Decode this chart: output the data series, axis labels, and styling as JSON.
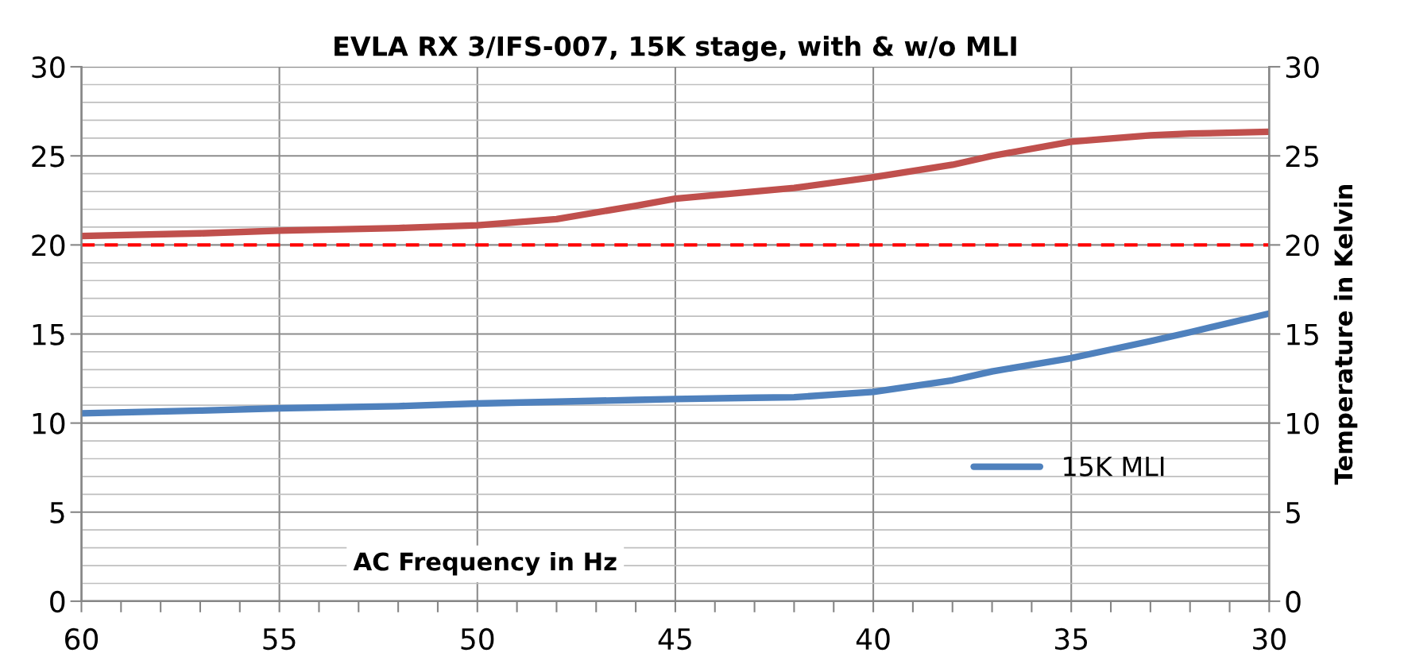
{
  "chart_data": {
    "type": "line",
    "title": "EVLA RX 3/IFS-007, 15K stage, with & w/o MLI",
    "xlabel": "AC Frequency in Hz",
    "y2label": "Temperature in Kelvin",
    "x": [
      60,
      57,
      55,
      52,
      50,
      48,
      46,
      45,
      43,
      42,
      40,
      38,
      37,
      35,
      33,
      32,
      30
    ],
    "series": [
      {
        "color": "#c0504d",
        "values": [
          20.5,
          20.65,
          20.8,
          20.95,
          21.1,
          21.45,
          22.2,
          22.6,
          23.0,
          23.2,
          23.8,
          24.5,
          25.0,
          25.8,
          26.15,
          26.25,
          26.35
        ]
      },
      {
        "name": "15K MLI",
        "color": "#4f81bd",
        "values": [
          10.55,
          10.7,
          10.83,
          10.95,
          11.1,
          11.2,
          11.3,
          11.35,
          11.42,
          11.45,
          11.75,
          12.4,
          12.9,
          13.65,
          14.6,
          15.1,
          16.15
        ]
      }
    ],
    "xlim": [
      60,
      30
    ],
    "xticks": [
      60,
      {
        "value": 59,
        "label": null
      },
      {
        "value": 58,
        "label": null
      },
      {
        "value": 57,
        "label": null
      },
      {
        "value": 56,
        "label": null
      },
      55,
      {
        "value": 54,
        "label": null
      },
      {
        "value": 53,
        "label": null
      },
      {
        "value": 52,
        "label": null
      },
      {
        "value": 51,
        "label": null
      },
      50,
      {
        "value": 49,
        "label": null
      },
      {
        "value": 48,
        "label": null
      },
      {
        "value": 47,
        "label": null
      },
      {
        "value": 46,
        "label": null
      },
      45,
      {
        "value": 44,
        "label": null
      },
      {
        "value": 43,
        "label": null
      },
      {
        "value": 42,
        "label": null
      },
      {
        "value": 41,
        "label": null
      },
      40,
      {
        "value": 39,
        "label": null
      },
      {
        "value": 38,
        "label": null
      },
      {
        "value": 37,
        "label": null
      },
      {
        "value": 36,
        "label": null
      },
      35,
      {
        "value": 34,
        "label": null
      },
      {
        "value": 33,
        "label": null
      },
      {
        "value": 32,
        "label": null
      },
      {
        "value": 31,
        "label": null
      },
      30
    ],
    "ylim": [
      0,
      30
    ],
    "yticks": [
      0,
      5,
      10,
      15,
      20,
      25,
      30
    ],
    "y2lim": [
      0,
      30
    ],
    "y2ticks": [
      0,
      5,
      10,
      15,
      20,
      25,
      30
    ],
    "ref_lines": [
      {
        "axis": "y",
        "value": 20,
        "color": "#ff0000",
        "line_style": "dashed"
      }
    ],
    "grid": true,
    "legend": "bottom right",
    "line_style": "solid",
    "marker": "none"
  }
}
